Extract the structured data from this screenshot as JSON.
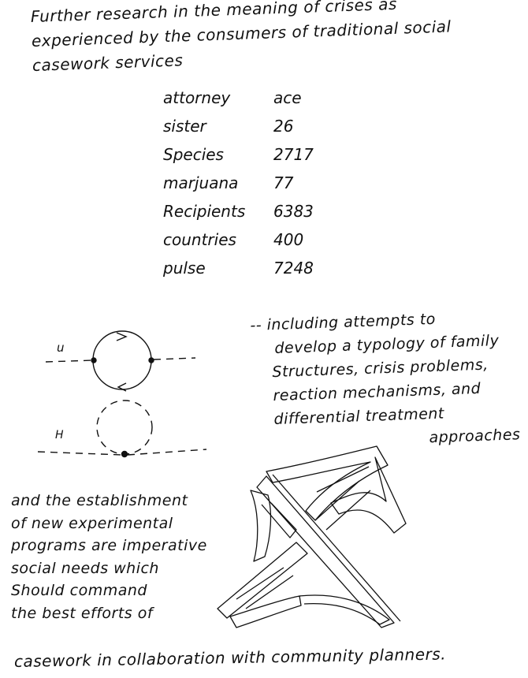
{
  "intro": {
    "line1": "Further research in the meaning of crises as",
    "line2": "experienced by the consumers of traditional social",
    "line3": "casework services"
  },
  "word_list": [
    {
      "word": "attorney",
      "value": "ace"
    },
    {
      "word": "sister",
      "value": "26"
    },
    {
      "word": "Species",
      "value": "2717"
    },
    {
      "word": "marjuana",
      "value": "77"
    },
    {
      "word": "Recipients",
      "value": "6383"
    },
    {
      "word": "countries",
      "value": "400"
    },
    {
      "word": "pulse",
      "value": "7248"
    }
  ],
  "diagram": {
    "label_top": "u",
    "label_bottom": "H"
  },
  "side_note": {
    "line1": "-- including attempts to",
    "line2": "develop a typology of family",
    "line3": "Structures, crisis problems,",
    "line4": "reaction mechanisms, and",
    "line5": "differential treatment",
    "line6": "approaches"
  },
  "bottom_text": {
    "line1": "and the establishment",
    "line2": "of new experimental",
    "line3": "programs are imperative",
    "line4": "social needs which",
    "line5": "Should command",
    "line6": "the best efforts of"
  },
  "closing_line": "casework in collaboration with community planners."
}
